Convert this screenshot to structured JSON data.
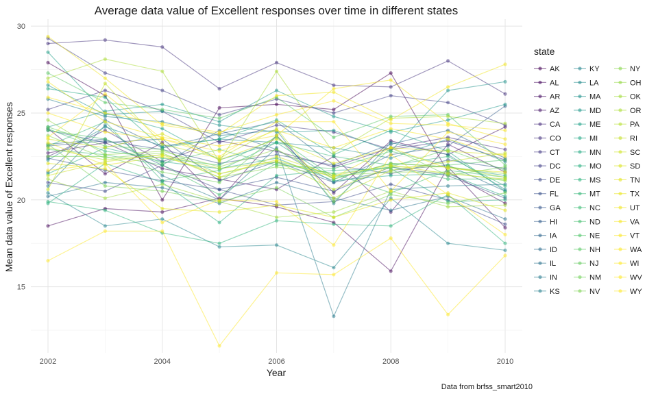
{
  "chart_data": {
    "type": "line",
    "title": "Average data value of Excellent responses over time in different states",
    "xlabel": "Year",
    "ylabel": "Mean data value of Excellent responses",
    "caption": "Data from brfss_smart2010",
    "legend_title": "state",
    "legend_position": "right",
    "grid": true,
    "xlim": [
      2001.7,
      2010.3
    ],
    "ylim": [
      11.2,
      30.4
    ],
    "xticks": [
      2002,
      2004,
      2006,
      2008,
      2010
    ],
    "yticks": [
      15,
      20,
      25,
      30
    ],
    "x": [
      2002,
      2003,
      2004,
      2005,
      2006,
      2007,
      2008,
      2009,
      2010
    ],
    "series": [
      {
        "name": "AK",
        "color": "#440154",
        "values": [
          27.9,
          26.0,
          20.0,
          25.3,
          25.5,
          25.2,
          27.3,
          21.6,
          19.8
        ]
      },
      {
        "name": "AL",
        "color": "#46085c",
        "values": [
          18.5,
          19.5,
          19.3,
          20.1,
          19.6,
          18.7,
          15.9,
          21.9,
          18.4
        ]
      },
      {
        "name": "AR",
        "color": "#471063",
        "values": [
          24.1,
          21.5,
          23.3,
          20.0,
          23.7,
          20.4,
          23.4,
          22.6,
          24.2
        ]
      },
      {
        "name": "AZ",
        "color": "#48186a",
        "values": [
          22.7,
          23.3,
          21.8,
          21.2,
          20.6,
          22.5,
          19.3,
          23.2,
          21.6
        ]
      },
      {
        "name": "CA",
        "color": "#472d7b",
        "values": [
          22.5,
          24.0,
          22.2,
          23.4,
          22.8,
          21.9,
          23.0,
          23.6,
          22.9
        ]
      },
      {
        "name": "CO",
        "color": "#46337e",
        "values": [
          29.0,
          29.2,
          28.8,
          26.4,
          27.9,
          26.6,
          26.5,
          28.0,
          26.1
        ]
      },
      {
        "name": "CT",
        "color": "#443983",
        "values": [
          25.2,
          26.3,
          25.1,
          23.3,
          24.3,
          23.9,
          22.9,
          23.4,
          22.3
        ]
      },
      {
        "name": "DC",
        "color": "#424086",
        "values": [
          29.3,
          27.3,
          26.3,
          24.9,
          25.8,
          25.0,
          26.0,
          25.6,
          24.3
        ]
      },
      {
        "name": "DE",
        "color": "#3e4989",
        "values": [
          21.0,
          20.5,
          22.0,
          20.6,
          19.7,
          19.9,
          20.9,
          20.0,
          18.6
        ]
      },
      {
        "name": "FL",
        "color": "#3b528b",
        "values": [
          22.4,
          21.7,
          21.1,
          20.6,
          21.3,
          20.5,
          21.9,
          21.4,
          20.1
        ]
      },
      {
        "name": "GA",
        "color": "#38598c",
        "values": [
          23.1,
          23.4,
          22.9,
          22.1,
          22.6,
          22.0,
          21.5,
          22.3,
          21.8
        ]
      },
      {
        "name": "HI",
        "color": "#355f8d",
        "values": [
          24.0,
          23.3,
          23.5,
          21.1,
          22.2,
          21.0,
          22.6,
          23.1,
          25.4
        ]
      },
      {
        "name": "IA",
        "color": "#31688e",
        "values": [
          21.6,
          24.6,
          23.0,
          23.8,
          24.5,
          22.0,
          23.2,
          24.0,
          22.4
        ]
      },
      {
        "name": "ID",
        "color": "#2e6e8e",
        "values": [
          23.2,
          23.5,
          22.0,
          24.0,
          22.9,
          21.0,
          21.7,
          22.0,
          20.5
        ]
      },
      {
        "name": "IL",
        "color": "#2c738e",
        "values": [
          20.2,
          21.0,
          20.7,
          19.8,
          21.0,
          20.1,
          19.4,
          20.2,
          18.9
        ]
      },
      {
        "name": "IN",
        "color": "#297b8e",
        "values": [
          20.8,
          24.3,
          21.4,
          20.0,
          23.0,
          13.3,
          20.6,
          20.8,
          20.9
        ]
      },
      {
        "name": "KS",
        "color": "#27808e",
        "values": [
          25.8,
          24.8,
          24.5,
          23.7,
          24.0,
          19.8,
          23.3,
          22.6,
          20.6
        ]
      },
      {
        "name": "KY",
        "color": "#25858e",
        "values": [
          20.4,
          18.5,
          18.9,
          17.3,
          17.4,
          16.1,
          20.1,
          17.5,
          17.1
        ]
      },
      {
        "name": "LA",
        "color": "#228b8d",
        "values": [
          22.3,
          24.2,
          23.1,
          23.5,
          23.3,
          23.0,
          22.4,
          23.5,
          22.2
        ]
      },
      {
        "name": "MA",
        "color": "#20928c",
        "values": [
          26.6,
          24.9,
          25.1,
          24.3,
          23.9,
          24.0,
          22.8,
          26.3,
          26.8
        ]
      },
      {
        "name": "MD",
        "color": "#1f988b",
        "values": [
          24.2,
          25.1,
          25.5,
          24.5,
          26.3,
          24.8,
          23.9,
          24.6,
          25.5
        ]
      },
      {
        "name": "ME",
        "color": "#1fa088",
        "values": [
          28.5,
          25.0,
          24.1,
          22.3,
          23.3,
          21.2,
          22.1,
          21.9,
          21.4
        ]
      },
      {
        "name": "MI",
        "color": "#21a585",
        "values": [
          21.5,
          23.0,
          22.2,
          21.8,
          22.4,
          21.1,
          21.4,
          21.5,
          20.2
        ]
      },
      {
        "name": "MN",
        "color": "#24aa83",
        "values": [
          26.4,
          25.9,
          23.0,
          23.5,
          24.6,
          22.6,
          24.0,
          22.8,
          20.5
        ]
      },
      {
        "name": "MO",
        "color": "#28ae80",
        "values": [
          19.8,
          22.1,
          21.0,
          18.7,
          21.4,
          21.7,
          21.8,
          19.9,
          20.0
        ]
      },
      {
        "name": "MS",
        "color": "#2eb37c",
        "values": [
          19.9,
          19.4,
          18.1,
          17.5,
          18.8,
          18.6,
          18.5,
          20.3,
          17.5
        ]
      },
      {
        "name": "MT",
        "color": "#35b779",
        "values": [
          23.1,
          24.5,
          21.1,
          21.7,
          23.3,
          22.5,
          22.0,
          22.5,
          20.8
        ]
      },
      {
        "name": "NC",
        "color": "#3dbc74",
        "values": [
          24.1,
          22.8,
          22.4,
          22.0,
          23.6,
          21.3,
          21.9,
          21.2,
          21.2
        ]
      },
      {
        "name": "ND",
        "color": "#46c06f",
        "values": [
          22.9,
          22.6,
          22.0,
          20.3,
          22.1,
          21.5,
          20.4,
          21.7,
          21.3
        ]
      },
      {
        "name": "NE",
        "color": "#50c46a",
        "values": [
          24.0,
          23.5,
          22.1,
          22.9,
          22.0,
          21.8,
          22.8,
          22.0,
          22.3
        ]
      },
      {
        "name": "NH",
        "color": "#5ac864",
        "values": [
          27.3,
          25.6,
          25.2,
          24.7,
          25.9,
          23.6,
          24.8,
          24.9,
          22.0
        ]
      },
      {
        "name": "NJ",
        "color": "#65cb5e",
        "values": [
          24.2,
          23.1,
          22.9,
          21.5,
          22.2,
          21.5,
          21.9,
          22.9,
          21.7
        ]
      },
      {
        "name": "NM",
        "color": "#70cf57",
        "values": [
          22.5,
          22.5,
          21.6,
          21.0,
          23.7,
          19.9,
          23.0,
          21.4,
          21.9
        ]
      },
      {
        "name": "NV",
        "color": "#7ad151",
        "values": [
          23.2,
          20.8,
          20.5,
          19.9,
          20.7,
          19.0,
          20.3,
          19.8,
          20.4
        ]
      },
      {
        "name": "NY",
        "color": "#86d549",
        "values": [
          23.7,
          22.4,
          22.7,
          21.3,
          21.9,
          21.4,
          21.6,
          21.6,
          21.1
        ]
      },
      {
        "name": "OH",
        "color": "#93d741",
        "values": [
          24.6,
          22.6,
          22.8,
          21.9,
          22.9,
          21.2,
          22.1,
          21.9,
          21.5
        ]
      },
      {
        "name": "OK",
        "color": "#a0da39",
        "values": [
          21.2,
          20.1,
          20.9,
          19.9,
          19.0,
          19.3,
          20.5,
          19.6,
          19.7
        ]
      },
      {
        "name": "OR",
        "color": "#aadc32",
        "values": [
          27.0,
          28.1,
          27.4,
          22.2,
          27.4,
          22.7,
          24.7,
          24.8,
          24.4
        ]
      },
      {
        "name": "PA",
        "color": "#b5de2b",
        "values": [
          23.0,
          22.3,
          22.6,
          21.8,
          22.2,
          20.6,
          21.9,
          21.9,
          21.3
        ]
      },
      {
        "name": "RI",
        "color": "#c2df23",
        "values": [
          20.6,
          26.7,
          23.2,
          22.4,
          24.1,
          20.1,
          21.7,
          22.2,
          22.7
        ]
      },
      {
        "name": "SC",
        "color": "#cde11d",
        "values": [
          21.4,
          22.2,
          22.6,
          21.3,
          22.5,
          21.4,
          22.0,
          21.5,
          21.2
        ]
      },
      {
        "name": "SD",
        "color": "#d8e219",
        "values": [
          23.5,
          23.0,
          23.8,
          22.3,
          23.5,
          22.1,
          23.0,
          22.8,
          22.6
        ]
      },
      {
        "name": "TN",
        "color": "#e2e418",
        "values": [
          22.1,
          21.8,
          19.5,
          19.3,
          19.7,
          19.0,
          20.0,
          20.4,
          19.4
        ]
      },
      {
        "name": "TX",
        "color": "#eae51a",
        "values": [
          23.3,
          22.0,
          22.5,
          21.5,
          22.3,
          21.3,
          23.0,
          21.8,
          21.6
        ]
      },
      {
        "name": "UT",
        "color": "#f1e51d",
        "values": [
          29.4,
          27.0,
          24.3,
          23.8,
          26.0,
          26.2,
          24.6,
          26.5,
          27.8
        ]
      },
      {
        "name": "VA",
        "color": "#f6e620",
        "values": [
          26.8,
          24.5,
          23.6,
          23.1,
          23.7,
          26.4,
          26.9,
          24.4,
          23.5
        ]
      },
      {
        "name": "VT",
        "color": "#f9e622",
        "values": [
          25.9,
          25.0,
          24.4,
          23.9,
          24.9,
          25.7,
          24.4,
          24.3,
          24.0
        ]
      },
      {
        "name": "WA",
        "color": "#fbe723",
        "values": [
          25.0,
          23.9,
          23.5,
          22.8,
          24.0,
          23.0,
          24.1,
          23.5,
          22.5
        ]
      },
      {
        "name": "WI",
        "color": "#fde725",
        "values": [
          23.6,
          26.1,
          23.5,
          22.5,
          24.5,
          24.5,
          20.5,
          23.9,
          23.2
        ]
      },
      {
        "name": "WV",
        "color": "#fde725",
        "values": [
          16.5,
          18.2,
          18.2,
          11.6,
          15.8,
          15.7,
          17.8,
          13.4,
          16.8
        ]
      },
      {
        "name": "WY",
        "color": "#fde725",
        "values": [
          21.7,
          22.1,
          18.7,
          20.0,
          19.9,
          17.4,
          22.6,
          20.3,
          18.0
        ]
      }
    ]
  }
}
